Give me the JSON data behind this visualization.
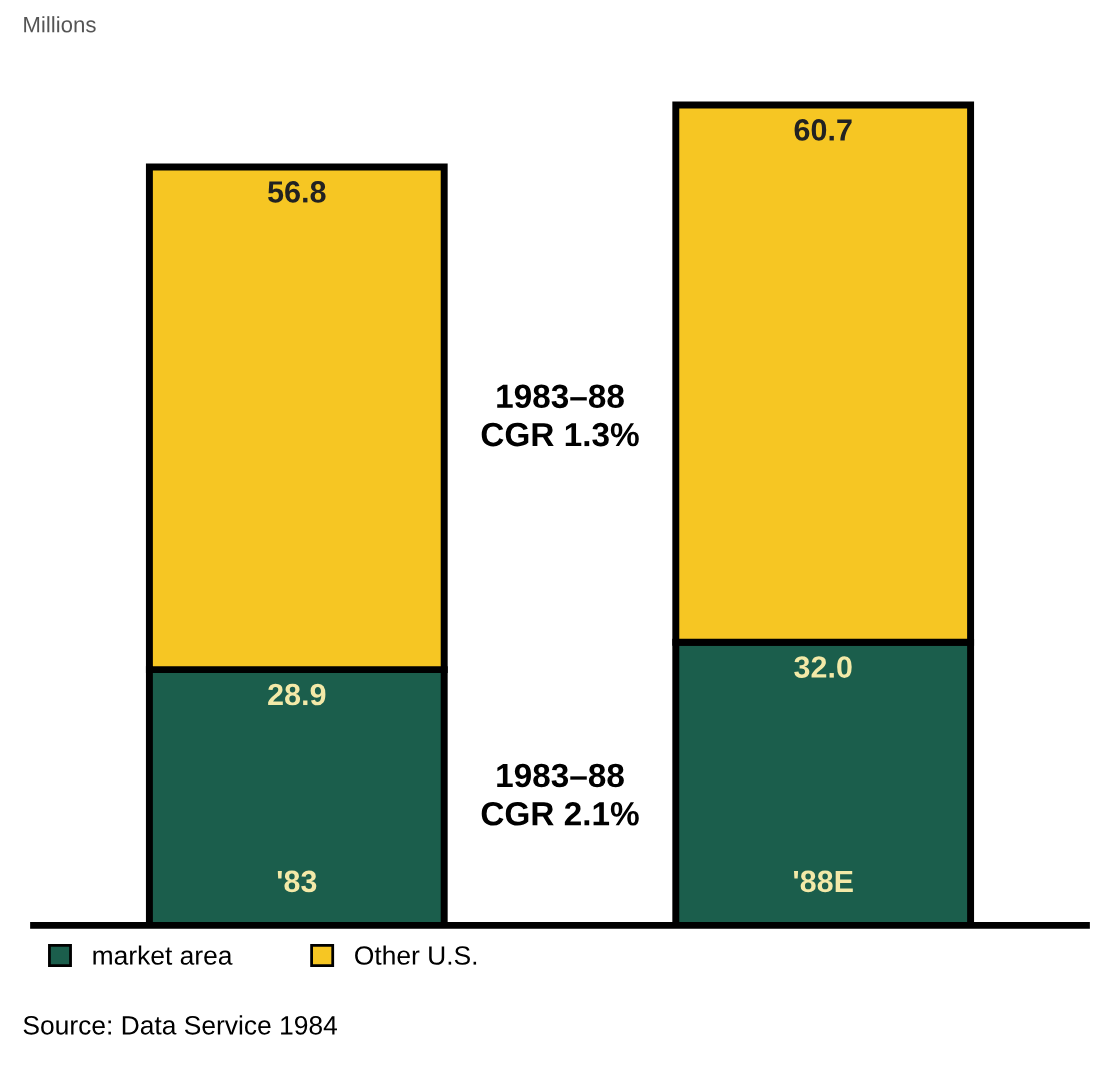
{
  "chart_data": {
    "type": "bar",
    "stacked": true,
    "ylabel": "Millions",
    "categories": [
      "'83",
      "'88E"
    ],
    "series": [
      {
        "name": "market area",
        "color": "#1b5e4c",
        "values": [
          28.9,
          32.0
        ],
        "value_labels": [
          "28.9",
          "32.0"
        ]
      },
      {
        "name": "Other U.S.",
        "color": "#f6c623",
        "values": [
          56.8,
          60.7
        ],
        "value_labels": [
          "56.8",
          "60.7"
        ]
      }
    ],
    "legend": "bottom left",
    "grid": false,
    "annotations": [
      "1983–88\nCGR 1.3%",
      "1983–88\nCGR 2.1%",
      "Source: Data Service 1984"
    ]
  }
}
